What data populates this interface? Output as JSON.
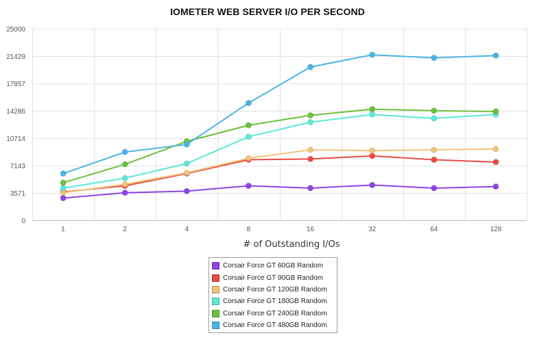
{
  "chart_data": {
    "type": "line",
    "title": "IOMETER WEB SERVER I/O PER SECOND",
    "xlabel": "# of Outstanding I/Os",
    "ylabel": "",
    "categories": [
      "1",
      "2",
      "4",
      "8",
      "16",
      "32",
      "64",
      "128"
    ],
    "yticks": [
      "0",
      "3571",
      "7143",
      "10714",
      "14286",
      "17857",
      "21429",
      "25000"
    ],
    "ylim": [
      0,
      25000
    ],
    "grid": true,
    "legend_position": "bottom",
    "series": [
      {
        "name": "Corsair Force GT 60GB Random",
        "color": "#8e44e6",
        "values": [
          2900,
          3600,
          3800,
          4500,
          4200,
          4600,
          4200,
          4400
        ]
      },
      {
        "name": "Corsair Force GT 90GB Random",
        "color": "#e84c44",
        "values": [
          3700,
          4500,
          6100,
          7900,
          8000,
          8400,
          7900,
          7600
        ]
      },
      {
        "name": "Corsair Force GT 120GB Random",
        "color": "#f2c47c",
        "values": [
          3600,
          4700,
          6200,
          8100,
          9200,
          9100,
          9200,
          9300
        ]
      },
      {
        "name": "Corsair Force GT 180GB Random",
        "color": "#5de8d8",
        "values": [
          4200,
          5500,
          7400,
          10900,
          12800,
          13800,
          13300,
          13800
        ]
      },
      {
        "name": "Corsair Force GT 240GB Random",
        "color": "#6cc13a",
        "values": [
          4900,
          7300,
          10300,
          12400,
          13700,
          14500,
          14300,
          14200
        ]
      },
      {
        "name": "Corsair Force GT 480GB Random",
        "color": "#4bb4e6",
        "values": [
          6100,
          8900,
          9900,
          15300,
          20000,
          21600,
          21200,
          21500
        ]
      }
    ]
  }
}
